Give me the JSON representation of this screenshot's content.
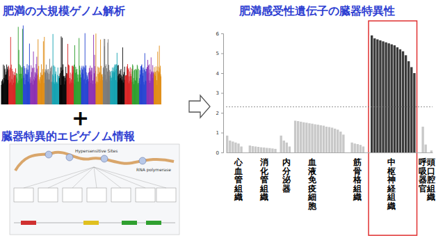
{
  "panels": {
    "left_top_title": "肥満の大規模ゲノム解析",
    "plus": "+",
    "left_bottom_title": "臓器特異的エピゲノム情報",
    "diagram_labels": [
      "Hypersensitive Sites",
      "RNA polymerase"
    ]
  },
  "chart_data": {
    "type": "bar",
    "title": "肥満感受性遺伝子の臓器特異性",
    "categories": [
      null,
      null,
      null,
      null,
      "心血管組織",
      null,
      null,
      null,
      null,
      null,
      null,
      null,
      null,
      "消化管組織",
      null,
      null,
      null,
      null,
      null,
      null,
      null,
      "内分泌器",
      null,
      null,
      null,
      null,
      null,
      null,
      null,
      null,
      "血液免疫細胞",
      null,
      null,
      null,
      null,
      null,
      null,
      null,
      null,
      null,
      null,
      null,
      null,
      null,
      null,
      null,
      "筋骨格組織",
      null,
      null,
      null,
      null,
      null,
      null,
      null,
      null,
      null,
      null,
      null,
      "中枢神経組織",
      null,
      null,
      null,
      null,
      null,
      null,
      null,
      null,
      null,
      null,
      "呼吸器官",
      null,
      null,
      "頭口腔組織"
    ],
    "values": [
      0.85,
      0.6,
      0.55,
      0.5,
      0.45,
      0.3,
      null,
      null,
      0.35,
      0.32,
      0.3,
      0.28,
      0.26,
      0.25,
      0.23,
      0.22,
      0.2,
      0.18,
      null,
      0.85,
      0.6,
      0.5,
      0.3,
      null,
      1.6,
      1.58,
      1.55,
      1.52,
      1.5,
      1.47,
      1.45,
      1.42,
      1.4,
      1.37,
      1.35,
      1.3,
      1.28,
      1.25,
      1.2,
      1.15,
      1.05,
      0.9,
      null,
      null,
      0.5,
      0.45,
      0.42,
      0.38,
      0.3,
      null,
      null,
      5.9,
      5.75,
      5.7,
      5.65,
      5.6,
      5.55,
      5.5,
      5.45,
      5.4,
      5.3,
      5.2,
      5.1,
      4.9,
      4.6,
      4.3,
      4.0,
      null,
      null,
      1.3,
      0.4,
      null,
      0.1
    ],
    "colors": [
      "#c8c8c8",
      "#c8c8c8",
      "#c8c8c8",
      "#c8c8c8",
      "#c8c8c8",
      "#c8c8c8",
      null,
      null,
      "#c8c8c8",
      "#c8c8c8",
      "#c8c8c8",
      "#c8c8c8",
      "#c8c8c8",
      "#c8c8c8",
      "#c8c8c8",
      "#c8c8c8",
      "#c8c8c8",
      "#c8c8c8",
      null,
      "#c8c8c8",
      "#c8c8c8",
      "#c8c8c8",
      "#c8c8c8",
      null,
      "#c8c8c8",
      "#c8c8c8",
      "#c8c8c8",
      "#c8c8c8",
      "#c8c8c8",
      "#c8c8c8",
      "#c8c8c8",
      "#c8c8c8",
      "#c8c8c8",
      "#c8c8c8",
      "#c8c8c8",
      "#c8c8c8",
      "#c8c8c8",
      "#c8c8c8",
      "#c8c8c8",
      "#c8c8c8",
      "#c8c8c8",
      "#c8c8c8",
      null,
      null,
      "#c8c8c8",
      "#c8c8c8",
      "#c8c8c8",
      "#c8c8c8",
      "#c8c8c8",
      null,
      null,
      "#3a3a3a",
      "#3a3a3a",
      "#3a3a3a",
      "#3a3a3a",
      "#3a3a3a",
      "#3a3a3a",
      "#3a3a3a",
      "#3a3a3a",
      "#3a3a3a",
      "#3a3a3a",
      "#3a3a3a",
      "#3a3a3a",
      "#3a3a3a",
      "#3a3a3a",
      "#3a3a3a",
      "#3a3a3a",
      null,
      null,
      "#c8c8c8",
      "#c8c8c8",
      null,
      "#c8c8c8"
    ],
    "ylim": [
      0,
      6
    ],
    "yticks": [
      0,
      1,
      2,
      3,
      4,
      5,
      6
    ],
    "reference_line": 2.3,
    "highlight": "中枢神経組織"
  }
}
